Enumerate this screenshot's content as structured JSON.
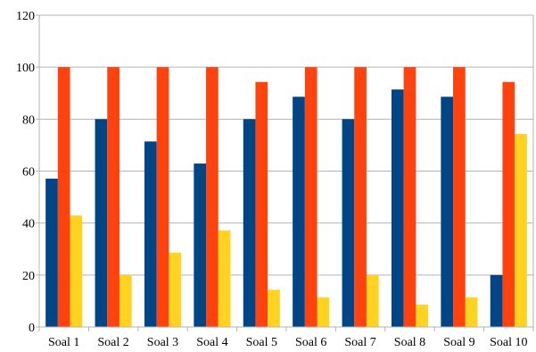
{
  "chart_data": {
    "type": "bar",
    "categories": [
      "Soal 1",
      "Soal 2",
      "Soal 3",
      "Soal 4",
      "Soal 5",
      "Soal 6",
      "Soal 7",
      "Soal 8",
      "Soal 9",
      "Soal 10"
    ],
    "series": [
      {
        "color": "#004586",
        "values": [
          57.1,
          80,
          71.4,
          62.9,
          80,
          88.6,
          80,
          91.4,
          88.6,
          20
        ]
      },
      {
        "color": "#ff420e",
        "values": [
          100,
          100,
          100,
          100,
          94.3,
          100,
          100,
          100,
          100,
          94.3
        ]
      },
      {
        "color": "#ffd320",
        "values": [
          42.9,
          20,
          28.6,
          37.1,
          14.3,
          11.4,
          20,
          8.6,
          11.4,
          74.3
        ]
      }
    ],
    "yticks": [
      "0",
      "20",
      "40",
      "60",
      "80",
      "100",
      "120"
    ],
    "ylim": [
      0,
      120
    ],
    "grid": true,
    "legend": "none"
  }
}
